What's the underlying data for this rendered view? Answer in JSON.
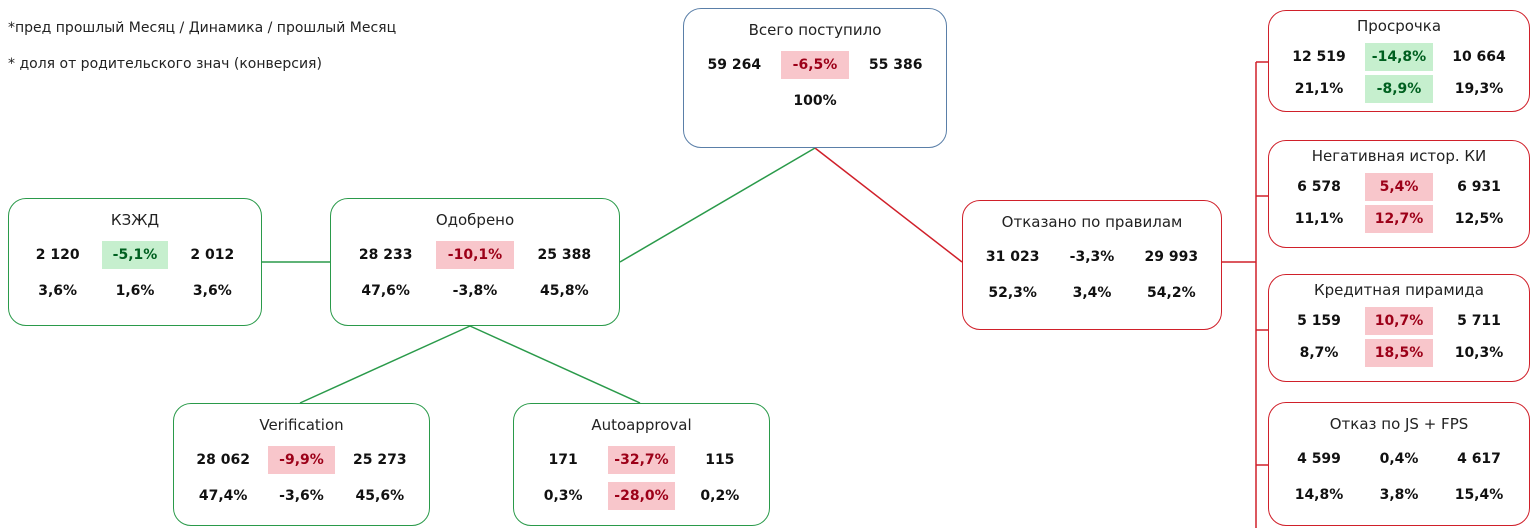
{
  "notes": [
    "*пред прошлый Месяц / Динамика / прошлый Месяц",
    "* доля от родительского знач (конверсия)"
  ],
  "nodes": [
    {
      "title": "Всего поступило",
      "rows": [
        [
          "59 264",
          "-6,5%",
          "55 386"
        ],
        [
          "100%"
        ]
      ]
    },
    {
      "title": "КЗЖД",
      "rows": [
        [
          "2 120",
          "-5,1%",
          "2 012"
        ],
        [
          "3,6%",
          "1,6%",
          "3,6%"
        ]
      ]
    },
    {
      "title": "Одобрено",
      "rows": [
        [
          "28 233",
          "-10,1%",
          "25 388"
        ],
        [
          "47,6%",
          "-3,8%",
          "45,8%"
        ]
      ]
    },
    {
      "title": "Отказано по правилам",
      "rows": [
        [
          "31 023",
          "-3,3%",
          "29 993"
        ],
        [
          "52,3%",
          "3,4%",
          "54,2%"
        ]
      ]
    },
    {
      "title": "Verification",
      "rows": [
        [
          "28 062",
          "-9,9%",
          "25 273"
        ],
        [
          "47,4%",
          "-3,6%",
          "45,6%"
        ]
      ]
    },
    {
      "title": "Autoapproval",
      "rows": [
        [
          "171",
          "-32,7%",
          "115"
        ],
        [
          "0,3%",
          "-28,0%",
          "0,2%"
        ]
      ]
    },
    {
      "title": "Просрочка",
      "rows": [
        [
          "12 519",
          "-14,8%",
          "10 664"
        ],
        [
          "21,1%",
          "-8,9%",
          "19,3%"
        ]
      ]
    },
    {
      "title": "Негативная истор. КИ",
      "rows": [
        [
          "6 578",
          "5,4%",
          "6 931"
        ],
        [
          "11,1%",
          "12,7%",
          "12,5%"
        ]
      ]
    },
    {
      "title": "Кредитная пирамида",
      "rows": [
        [
          "5 159",
          "10,7%",
          "5 711"
        ],
        [
          "8,7%",
          "18,5%",
          "10,3%"
        ]
      ]
    },
    {
      "title": "Отказ по JS + FPS",
      "rows": [
        [
          "4 599",
          "0,4%",
          "4 617"
        ],
        [
          "14,8%",
          "3,8%",
          "15,4%"
        ]
      ]
    }
  ]
}
